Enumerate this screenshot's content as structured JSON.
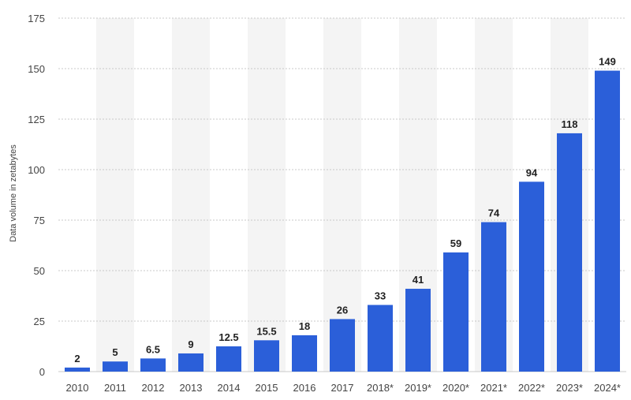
{
  "chart_data": {
    "type": "bar",
    "title": "",
    "xlabel": "",
    "ylabel": "Data volume in zetabytes",
    "ylim": [
      0,
      175
    ],
    "yticks": [
      0,
      25,
      50,
      75,
      100,
      125,
      150,
      175
    ],
    "categories": [
      "2010",
      "2011",
      "2012",
      "2013",
      "2014",
      "2015",
      "2016",
      "2017",
      "2018*",
      "2019*",
      "2020*",
      "2021*",
      "2022*",
      "2023*",
      "2024*"
    ],
    "values": [
      2,
      5,
      6.5,
      9,
      12.5,
      15.5,
      18,
      26,
      33,
      41,
      59,
      74,
      94,
      118,
      149
    ],
    "value_labels": [
      "2",
      "5",
      "6.5",
      "9",
      "12.5",
      "15.5",
      "18",
      "26",
      "33",
      "41",
      "59",
      "74",
      "94",
      "118",
      "149"
    ],
    "grid": true,
    "colors": {
      "bar": "#2b5fd9",
      "band": "#f4f4f4",
      "grid": "#c8c8c8"
    }
  }
}
